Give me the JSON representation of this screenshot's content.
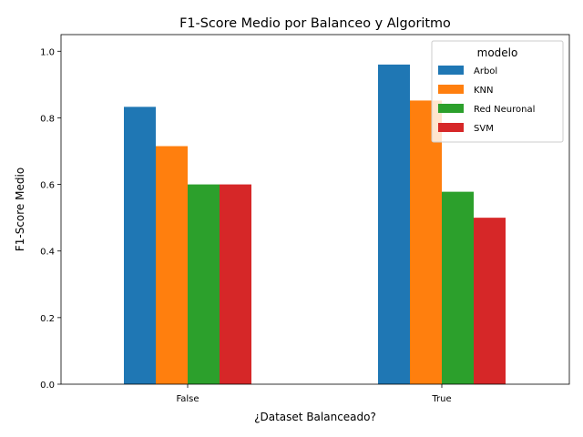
{
  "chart_data": {
    "type": "bar",
    "title": "F1-Score Medio por Balanceo y Algoritmo",
    "xlabel": "¿Dataset Balanceado?",
    "ylabel": "F1-Score Medio",
    "categories": [
      "False",
      "True"
    ],
    "ylim": [
      0,
      1.05
    ],
    "yticks": [
      "0.0",
      "0.2",
      "0.4",
      "0.6",
      "0.8",
      "1.0"
    ],
    "grid": false,
    "legend": {
      "title": "modelo",
      "position": "top-right"
    },
    "series": [
      {
        "name": "Arbol",
        "color": "#1f77b4",
        "values": [
          0.833,
          0.96
        ]
      },
      {
        "name": "KNN",
        "color": "#ff7f0e",
        "values": [
          0.715,
          0.852
        ]
      },
      {
        "name": "Red Neuronal",
        "color": "#2ca02c",
        "values": [
          0.6,
          0.578
        ]
      },
      {
        "name": "SVM",
        "color": "#d62728",
        "values": [
          0.6,
          0.5
        ]
      }
    ]
  }
}
